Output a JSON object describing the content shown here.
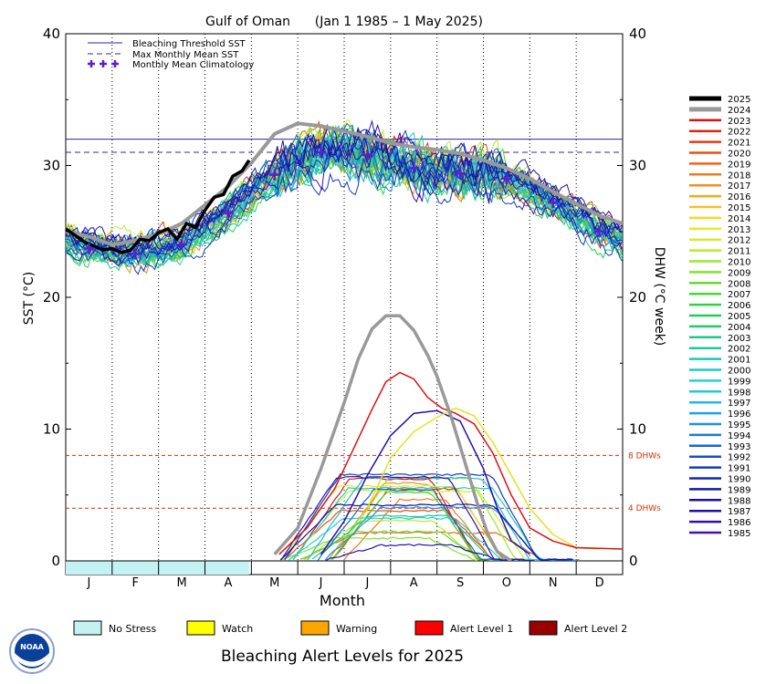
{
  "chart_data": {
    "type": "line",
    "title": "Gulf of Oman      (Jan 1 1985 – 1 May 2025)",
    "xlabel": "Month",
    "ylabel_left": "SST (°C)",
    "ylabel_right": "DHW (°C week)",
    "ylim_left": [
      0,
      40
    ],
    "ylim_right": [
      0,
      40
    ],
    "yticks_left": [
      "0",
      "10",
      "20",
      "30",
      "40"
    ],
    "yticks_right": [
      "0",
      "10",
      "20",
      "30",
      "40"
    ],
    "months": [
      "J",
      "F",
      "M",
      "A",
      "M",
      "J",
      "J",
      "A",
      "S",
      "O",
      "N",
      "D"
    ],
    "bleaching_threshold_sst": 32.0,
    "max_monthly_mean_sst": 31.0,
    "dhw_reference_lines": [
      {
        "value": 8,
        "label": "8 DHWs"
      },
      {
        "value": 4,
        "label": "4 DHWs"
      }
    ],
    "climatology": {
      "name": "Monthly Mean Climatology",
      "x": [
        0.5,
        1.5,
        2.5,
        3.5,
        4.5,
        5.5,
        6.5,
        7.5,
        8.5,
        9.5,
        10.5,
        11.5
      ],
      "y": [
        23.7,
        23.3,
        24.0,
        26.4,
        29.3,
        31.0,
        30.8,
        29.8,
        29.4,
        29.0,
        27.2,
        25.0
      ]
    },
    "series_2025_sst": {
      "name": "2025",
      "x": [
        0.0,
        0.2,
        0.4,
        0.6,
        0.8,
        1.0,
        1.2,
        1.4,
        1.6,
        1.8,
        2.0,
        2.2,
        2.4,
        2.6,
        2.8,
        3.0,
        3.2,
        3.4,
        3.6,
        3.8,
        3.95
      ],
      "y": [
        25.2,
        24.7,
        24.2,
        23.9,
        23.6,
        23.7,
        23.4,
        23.6,
        24.4,
        24.3,
        24.9,
        25.2,
        24.4,
        25.6,
        25.3,
        26.6,
        27.6,
        27.8,
        29.2,
        29.6,
        30.4
      ]
    },
    "series_2024_sst": {
      "name": "2024",
      "x": [
        0.0,
        0.5,
        1.0,
        1.5,
        2.0,
        2.5,
        3.0,
        3.5,
        4.0,
        4.5,
        5.0,
        5.5,
        6.0,
        6.5,
        7.0,
        7.5,
        8.0,
        8.5,
        9.0,
        9.5,
        10.0,
        10.5,
        11.0,
        11.5,
        12.0
      ],
      "y": [
        25.0,
        24.6,
        24.0,
        24.3,
        24.8,
        25.6,
        27.0,
        28.4,
        30.2,
        32.4,
        33.2,
        33.0,
        32.6,
        32.2,
        31.7,
        31.4,
        31.2,
        30.9,
        30.4,
        29.8,
        29.0,
        28.0,
        27.1,
        26.2,
        25.6
      ]
    },
    "series_2024_dhw": {
      "name": "2024",
      "x": [
        4.5,
        5.0,
        5.5,
        6.0,
        6.3,
        6.6,
        6.9,
        7.2,
        7.5,
        7.8,
        8.0,
        8.3,
        8.6,
        8.9,
        9.1,
        9.3,
        9.6
      ],
      "y": [
        0.5,
        2.5,
        7.0,
        12.0,
        15.3,
        17.6,
        18.6,
        18.6,
        17.5,
        15.6,
        14.0,
        11.0,
        7.5,
        4.0,
        2.0,
        0.7,
        0.0
      ]
    },
    "series_2023_dhw": {
      "name": "2023",
      "x": [
        4.6,
        5.2,
        5.8,
        6.2,
        6.6,
        6.9,
        7.2,
        7.5,
        7.8,
        8.1,
        8.4,
        8.8,
        9.2,
        9.6,
        10.0,
        10.5,
        11.0,
        12.0
      ],
      "y": [
        0.5,
        2.5,
        5.5,
        8.5,
        11.5,
        13.6,
        14.3,
        13.8,
        12.4,
        11.6,
        11.2,
        10.4,
        8.2,
        5.0,
        2.5,
        1.5,
        1.0,
        0.9
      ]
    },
    "series_2010_dhw": {
      "name": "2010",
      "x": [
        6.5,
        7.0,
        7.5,
        8.0,
        8.4,
        8.8,
        9.2,
        9.6,
        10.0,
        10.5,
        11.0,
        11.5
      ],
      "y": [
        4.0,
        7.8,
        9.8,
        10.9,
        11.6,
        11.0,
        9.0,
        6.5,
        4.0,
        2.0,
        1.0,
        0.9
      ]
    },
    "series_1987_dhw": {
      "name": "1987",
      "x": [
        5.5,
        6.0,
        6.5,
        7.0,
        7.5,
        8.0,
        8.5,
        9.0,
        9.3,
        9.6,
        10.0
      ],
      "y": [
        0.5,
        3.0,
        6.5,
        9.5,
        11.2,
        11.4,
        10.6,
        7.0,
        4.0,
        1.5,
        0.5
      ]
    },
    "legend_series": [
      "Bleaching Threshold SST",
      "Max Monthly Mean SST",
      "Monthly Mean Climatology"
    ],
    "year_legend": [
      {
        "name": "2025",
        "color": "#000000"
      },
      {
        "name": "2024",
        "color": "#999999"
      },
      {
        "name": "2023",
        "color": "#dd1010"
      },
      {
        "name": "2022",
        "color": "#e02010"
      },
      {
        "name": "2021",
        "color": "#e43a10"
      },
      {
        "name": "2020",
        "color": "#e85010"
      },
      {
        "name": "2019",
        "color": "#ec6414"
      },
      {
        "name": "2018",
        "color": "#f07a18"
      },
      {
        "name": "2017",
        "color": "#f2901a"
      },
      {
        "name": "2016",
        "color": "#f4a81c"
      },
      {
        "name": "2015",
        "color": "#f6c020"
      },
      {
        "name": "2014",
        "color": "#f4d824"
      },
      {
        "name": "2013",
        "color": "#eaea28"
      },
      {
        "name": "2012",
        "color": "#d4ec2c"
      },
      {
        "name": "2011",
        "color": "#b8ec2c"
      },
      {
        "name": "2010",
        "color": "#9ce82c"
      },
      {
        "name": "2009",
        "color": "#80e22c"
      },
      {
        "name": "2008",
        "color": "#62dc2c"
      },
      {
        "name": "2007",
        "color": "#44d830"
      },
      {
        "name": "2006",
        "color": "#2cd43c"
      },
      {
        "name": "2005",
        "color": "#20d054"
      },
      {
        "name": "2004",
        "color": "#1ccc6c"
      },
      {
        "name": "2003",
        "color": "#18ca84"
      },
      {
        "name": "2002",
        "color": "#18ca9c"
      },
      {
        "name": "2001",
        "color": "#18cab4"
      },
      {
        "name": "2000",
        "color": "#1cccc8"
      },
      {
        "name": "1999",
        "color": "#20d0d8"
      },
      {
        "name": "1998",
        "color": "#22c8e2"
      },
      {
        "name": "1997",
        "color": "#22b8e6"
      },
      {
        "name": "1996",
        "color": "#1ea4e4"
      },
      {
        "name": "1995",
        "color": "#1a90e0"
      },
      {
        "name": "1994",
        "color": "#187ad8"
      },
      {
        "name": "1993",
        "color": "#1664d0"
      },
      {
        "name": "1992",
        "color": "#1450c8"
      },
      {
        "name": "1991",
        "color": "#123cc0"
      },
      {
        "name": "1990",
        "color": "#1028b8"
      },
      {
        "name": "1989",
        "color": "#1018b0"
      },
      {
        "name": "1988",
        "color": "#1410a8"
      },
      {
        "name": "1987",
        "color": "#2010a8"
      },
      {
        "name": "1986",
        "color": "#3010a8"
      },
      {
        "name": "1985",
        "color": "#4010b0"
      }
    ],
    "alert_bar_2025": [
      {
        "level": "No Stress",
        "from_month": 0,
        "to_month": 3.95
      }
    ],
    "alert_levels": [
      {
        "label": "No Stress",
        "color": "#c4f2f2"
      },
      {
        "label": "Watch",
        "color": "#ffff00"
      },
      {
        "label": "Warning",
        "color": "#ffa500"
      },
      {
        "label": "Alert Level 1",
        "color": "#ff0000"
      },
      {
        "label": "Alert Level 2",
        "color": "#990000"
      }
    ],
    "alert_title": "Bleaching Alert Levels for 2025",
    "logo_text": "NOAA",
    "colors": {
      "threshold": "#3c1fa0",
      "mmm": "#3c1fa0",
      "climatology": "#5a20c8",
      "dhw_ref": "#cc3300",
      "no_stress": "#c4f2f2"
    }
  }
}
